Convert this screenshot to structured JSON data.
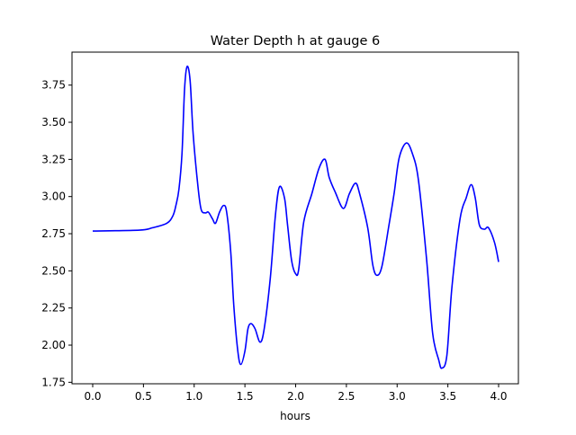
{
  "chart_data": {
    "type": "line",
    "title": "Water Depth h at gauge 6",
    "xlabel": "hours",
    "ylabel": "",
    "xlim": [
      -0.204,
      4.195
    ],
    "ylim": [
      1.74,
      3.972
    ],
    "xticks": [
      0,
      0.5,
      1,
      1.5,
      2,
      2.5,
      3,
      3.5,
      4
    ],
    "xtick_labels": [
      "0.0",
      "0.5",
      "1.0",
      "1.5",
      "2.0",
      "2.5",
      "3.0",
      "3.5",
      "4.0"
    ],
    "yticks": [
      1.75,
      2.0,
      2.25,
      2.5,
      2.75,
      3.0,
      3.25,
      3.5,
      3.75
    ],
    "ytick_labels": [
      "1.75",
      "2.00",
      "2.25",
      "2.50",
      "2.75",
      "3.00",
      "3.25",
      "3.50",
      "3.75"
    ],
    "grid": false,
    "series": [
      {
        "name": "h",
        "color": "#0000ff",
        "x": [
          0,
          0.46,
          0.59,
          0.73,
          0.79,
          0.82,
          0.85,
          0.88,
          0.905,
          0.93,
          0.96,
          0.99,
          1.04,
          1.07,
          1.11,
          1.14,
          1.18,
          1.21,
          1.25,
          1.29,
          1.32,
          1.36,
          1.39,
          1.43,
          1.46,
          1.5,
          1.53,
          1.56,
          1.6,
          1.65,
          1.69,
          1.75,
          1.8,
          1.84,
          1.89,
          1.92,
          1.96,
          2.0,
          2.03,
          2.08,
          2.16,
          2.23,
          2.29,
          2.33,
          2.39,
          2.47,
          2.53,
          2.59,
          2.63,
          2.71,
          2.76,
          2.8,
          2.85,
          2.92,
          2.97,
          3.02,
          3.09,
          3.15,
          3.21,
          3.29,
          3.35,
          3.41,
          3.44,
          3.49,
          3.54,
          3.62,
          3.68,
          3.73,
          3.77,
          3.81,
          3.86,
          3.9,
          3.96,
          4.0
        ],
        "y": [
          2.768,
          2.774,
          2.79,
          2.82,
          2.87,
          2.94,
          3.05,
          3.29,
          3.72,
          3.875,
          3.78,
          3.42,
          3.05,
          2.91,
          2.89,
          2.895,
          2.85,
          2.82,
          2.895,
          2.94,
          2.895,
          2.63,
          2.27,
          1.96,
          1.87,
          1.96,
          2.11,
          2.145,
          2.11,
          2.02,
          2.11,
          2.45,
          2.87,
          3.065,
          2.99,
          2.81,
          2.57,
          2.48,
          2.51,
          2.83,
          3.02,
          3.19,
          3.25,
          3.13,
          3.03,
          2.92,
          3.02,
          3.09,
          3.02,
          2.79,
          2.54,
          2.47,
          2.53,
          2.81,
          3.02,
          3.26,
          3.36,
          3.29,
          3.11,
          2.58,
          2.08,
          1.9,
          1.845,
          1.93,
          2.39,
          2.85,
          2.99,
          3.08,
          2.99,
          2.81,
          2.78,
          2.79,
          2.69,
          2.56
        ]
      }
    ]
  }
}
